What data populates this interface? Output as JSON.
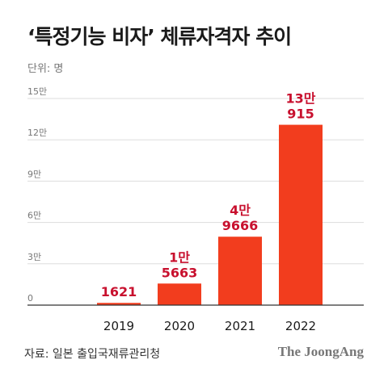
{
  "title": "‘특정기능 비자’ 체류자격자 추이",
  "unit_label": "단위: 명",
  "source": "자료: 일본 출입국재류관리청",
  "brand": "The JoongAng",
  "colors": {
    "bar": "#f23d1e",
    "label": "#c8102e",
    "grid": "#dddddd"
  },
  "chart_data": {
    "type": "bar",
    "categories": [
      "2019",
      "2020",
      "2021",
      "2022"
    ],
    "values": [
      1621,
      15663,
      49666,
      130915
    ],
    "data_labels": [
      [
        "1621"
      ],
      [
        "1만",
        "5663"
      ],
      [
        "4만",
        "9666"
      ],
      [
        "13만",
        "915"
      ]
    ],
    "y_ticks": [
      {
        "value": 0,
        "label": "0"
      },
      {
        "value": 30000,
        "label": "3만"
      },
      {
        "value": 60000,
        "label": "6만"
      },
      {
        "value": 90000,
        "label": "9만"
      },
      {
        "value": 120000,
        "label": "12만"
      },
      {
        "value": 150000,
        "label": "15만"
      }
    ],
    "ylim": [
      0,
      150000
    ],
    "grid": true
  }
}
